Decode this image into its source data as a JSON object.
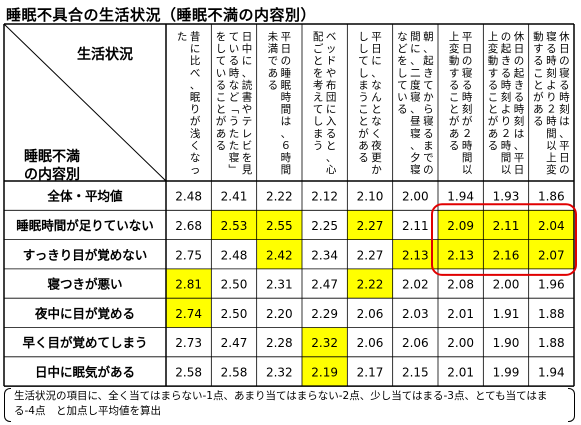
{
  "title": "睡眠不具合の生活状況（睡眠不満の内容別）",
  "corner": {
    "top": "生活状況",
    "bottom1": "睡眠不満",
    "bottom2": "の内容別"
  },
  "chart_data": {
    "type": "table",
    "columns": [
      "昔に比べ、眠りが浅くなった",
      "日中に、読書やテレビを見ている時など「うたた寝」をしていることがある",
      "平日の睡眠時間は、６時間未満である",
      "ベッドや布団に入ると、心配ごとを考えてしまう",
      "平日に、なんとなく夜更かししてしまうことがある",
      "朝、起きてから寝るまでの間に、二度寝、昼寝、夕寝などをしている",
      "平日の寝る時刻が２時間以上変動することがある",
      "休日の起きる時刻は、平日の起きる時刻より２時間以上変動することがある",
      "休日の寝る時刻は、平日の寝る時刻より２時間以上変動することがある"
    ],
    "rows": [
      {
        "label": "全体・平均値",
        "values": [
          2.48,
          2.41,
          2.22,
          2.12,
          2.1,
          2.0,
          1.94,
          1.93,
          1.86
        ],
        "highlight": []
      },
      {
        "label": "睡眠時間が足りていない",
        "values": [
          2.68,
          2.53,
          2.55,
          2.25,
          2.27,
          2.11,
          2.09,
          2.11,
          2.04
        ],
        "highlight": [
          1,
          2,
          4,
          6,
          7,
          8
        ]
      },
      {
        "label": "すっきり目が覚めない",
        "values": [
          2.75,
          2.48,
          2.42,
          2.34,
          2.27,
          2.13,
          2.13,
          2.16,
          2.07
        ],
        "highlight": [
          2,
          5,
          6,
          7,
          8
        ]
      },
      {
        "label": "寝つきが悪い",
        "values": [
          2.81,
          2.5,
          2.31,
          2.47,
          2.22,
          2.02,
          2.08,
          2.0,
          1.96
        ],
        "highlight": [
          0,
          4
        ]
      },
      {
        "label": "夜中に目が覚める",
        "values": [
          2.74,
          2.5,
          2.2,
          2.29,
          2.06,
          2.03,
          2.01,
          1.91,
          1.88
        ],
        "highlight": [
          0
        ]
      },
      {
        "label": "早く目が覚めてしまう",
        "values": [
          2.73,
          2.47,
          2.28,
          2.32,
          2.06,
          2.06,
          2.0,
          1.9,
          1.88
        ],
        "highlight": [
          3
        ]
      },
      {
        "label": "日中に眠気がある",
        "values": [
          2.58,
          2.58,
          2.32,
          2.19,
          2.17,
          2.15,
          2.01,
          1.99,
          1.94
        ],
        "highlight": [
          3
        ]
      }
    ],
    "highlight_color": "#ffff00",
    "emphasis_box_color": "#e00000"
  },
  "note": {
    "line1": "生活状況の項目に、全く当てはまらない-1点、あまり当てはまらない-2点、少し当てはまる-3点、とても当てはまる-4点　と加点し平均値を算出"
  }
}
